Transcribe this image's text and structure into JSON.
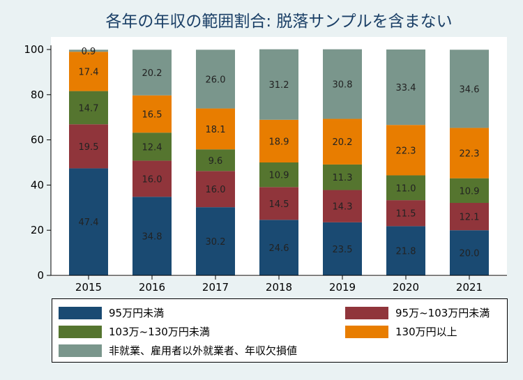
{
  "chart_data": {
    "type": "bar",
    "stacked": true,
    "title": "各年の年収の範囲割合: 脱落サンプルを含まない",
    "categories": [
      "2015",
      "2016",
      "2017",
      "2018",
      "2019",
      "2020",
      "2021"
    ],
    "ylim": [
      0,
      100
    ],
    "yticks": [
      "0",
      "20",
      "40",
      "60",
      "80",
      "100"
    ],
    "grid": false,
    "legend_position": "bottom",
    "series": [
      {
        "name": "95万円未満",
        "color": "#1a4a72",
        "values": [
          47.4,
          34.8,
          30.2,
          24.6,
          23.5,
          21.8,
          20.0
        ],
        "labels": [
          "47.4",
          "34.8",
          "30.2",
          "24.6",
          "23.5",
          "21.8",
          "20.0"
        ]
      },
      {
        "name": "95万~103万円未満",
        "color": "#90353b",
        "values": [
          19.5,
          16.0,
          16.0,
          14.5,
          14.3,
          11.5,
          12.1
        ],
        "labels": [
          "19.5",
          "16.0",
          "16.0",
          "14.5",
          "14.3",
          "11.5",
          "12.1"
        ]
      },
      {
        "name": "103万~130万円未満",
        "color": "#55752f",
        "values": [
          14.7,
          12.4,
          9.6,
          10.9,
          11.3,
          11.0,
          10.9
        ],
        "labels": [
          "14.7",
          "12.4",
          "9.6",
          "10.9",
          "11.3",
          "11.0",
          "10.9"
        ]
      },
      {
        "name": "130万円以上",
        "color": "#e87d00",
        "values": [
          17.4,
          16.5,
          18.1,
          18.9,
          20.2,
          22.3,
          22.3
        ],
        "labels": [
          "17.4",
          "16.5",
          "18.1",
          "18.9",
          "20.2",
          "22.3",
          "22.3"
        ]
      },
      {
        "name": "非就業、雇用者以外就業者、年収欠損値",
        "color": "#7a968c",
        "values": [
          0.9,
          20.2,
          26.0,
          31.2,
          30.8,
          33.4,
          34.6
        ],
        "labels": [
          "0.9",
          "20.2",
          "26.0",
          "31.2",
          "30.8",
          "33.4",
          "34.6"
        ]
      }
    ]
  }
}
